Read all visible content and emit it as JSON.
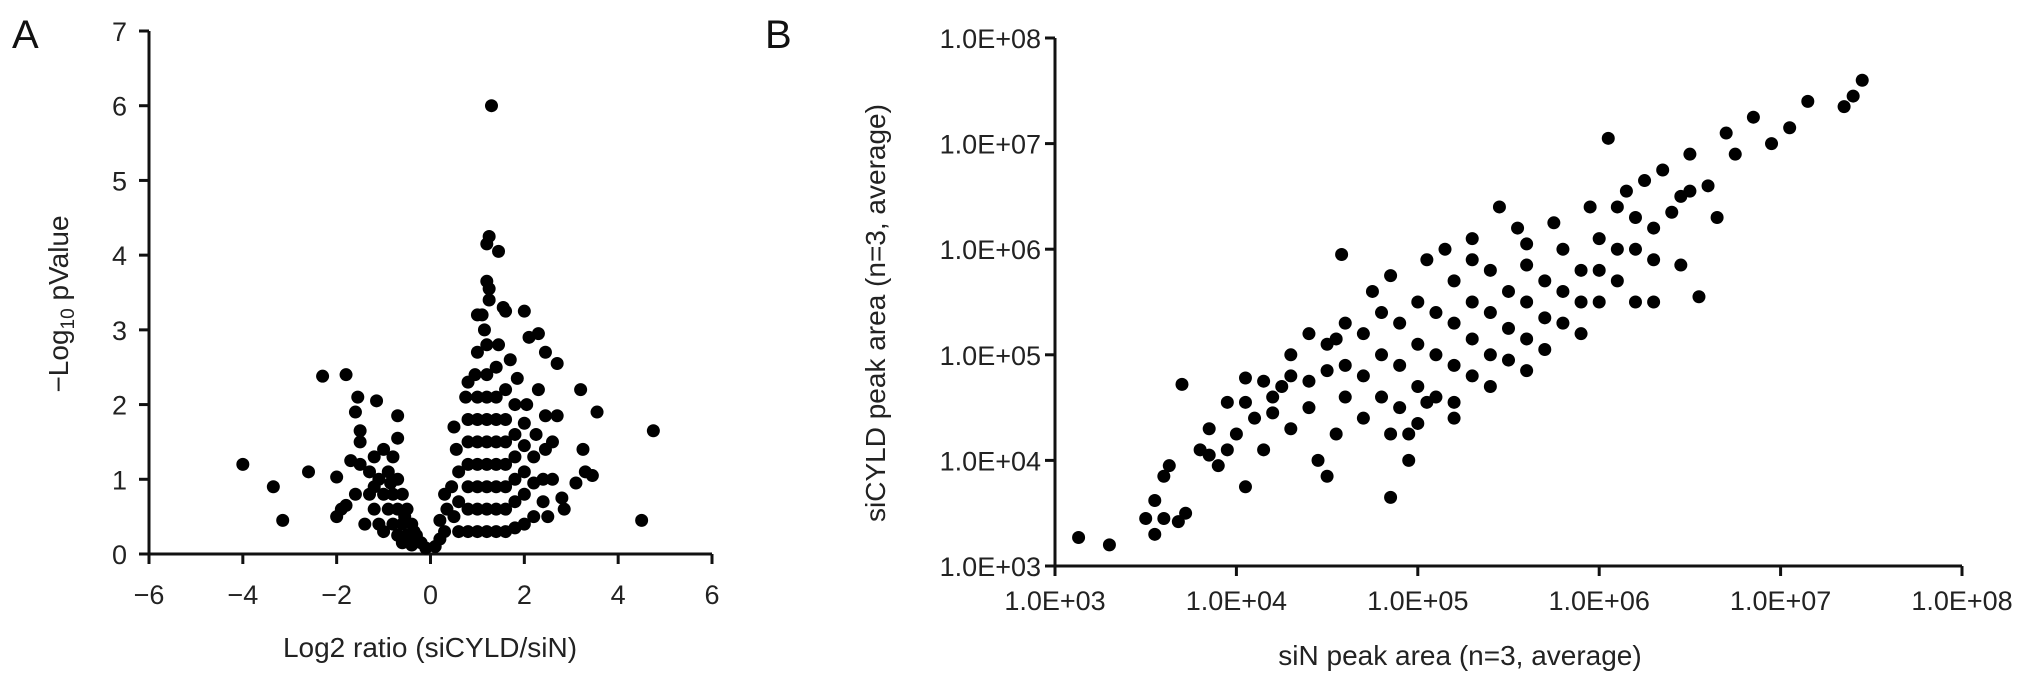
{
  "chart_data": [
    {
      "type": "scatter",
      "panel_label": "A",
      "title": "",
      "xlabel": "Log2 ratio (siCYLD/siN)",
      "ylabel": {
        "prefix": "−Log",
        "sub": "10",
        "suffix": " pValue"
      },
      "xlim": [
        -6,
        6
      ],
      "ylim": [
        0,
        7
      ],
      "xticks": [
        "−6",
        "−4",
        "−2",
        "0",
        "2",
        "4",
        "6"
      ],
      "xtick_values": [
        -6,
        -4,
        -2,
        0,
        2,
        4,
        6
      ],
      "yticks": [
        "0",
        "1",
        "2",
        "3",
        "4",
        "5",
        "6",
        "7"
      ],
      "ytick_values": [
        0,
        1,
        2,
        3,
        4,
        5,
        6,
        7
      ],
      "grid": false,
      "marker_color": "#000000",
      "points": [
        [
          1.3,
          6.0
        ],
        [
          1.25,
          4.25
        ],
        [
          1.2,
          4.15
        ],
        [
          1.45,
          4.05
        ],
        [
          1.2,
          3.65
        ],
        [
          1.25,
          3.55
        ],
        [
          1.25,
          3.4
        ],
        [
          1.55,
          3.3
        ],
        [
          1.6,
          3.25
        ],
        [
          2.0,
          3.25
        ],
        [
          1.0,
          3.2
        ],
        [
          1.1,
          3.2
        ],
        [
          2.3,
          2.95
        ],
        [
          2.1,
          2.9
        ],
        [
          2.45,
          2.7
        ],
        [
          2.7,
          2.55
        ],
        [
          3.2,
          2.2
        ],
        [
          3.55,
          1.9
        ],
        [
          2.7,
          1.85
        ],
        [
          2.45,
          1.85
        ],
        [
          3.25,
          1.4
        ],
        [
          3.3,
          1.1
        ],
        [
          3.45,
          1.05
        ],
        [
          3.1,
          0.95
        ],
        [
          2.8,
          0.75
        ],
        [
          2.85,
          0.6
        ],
        [
          4.5,
          0.45
        ],
        [
          4.75,
          1.65
        ],
        [
          -4.0,
          1.2
        ],
        [
          -3.35,
          0.9
        ],
        [
          -3.15,
          0.45
        ],
        [
          -2.6,
          1.1
        ],
        [
          -2.3,
          2.38
        ],
        [
          -1.8,
          2.4
        ],
        [
          -1.55,
          2.1
        ],
        [
          -1.15,
          2.05
        ],
        [
          -1.6,
          1.9
        ],
        [
          -0.7,
          1.85
        ],
        [
          -0.7,
          1.55
        ],
        [
          -1.5,
          1.65
        ],
        [
          -1.5,
          1.5
        ],
        [
          -2.0,
          1.03
        ],
        [
          -1.7,
          1.25
        ],
        [
          -1.9,
          0.6
        ],
        [
          -2.0,
          0.5
        ],
        [
          -1.4,
          0.4
        ],
        [
          -1.6,
          0.8
        ],
        [
          -1.8,
          0.65
        ],
        [
          -1.2,
          1.3
        ],
        [
          -1.0,
          1.4
        ],
        [
          -0.8,
          1.3
        ],
        [
          -1.1,
          1.0
        ],
        [
          -0.9,
          1.1
        ],
        [
          -0.7,
          1.0
        ],
        [
          -1.3,
          0.8
        ],
        [
          -1.0,
          0.8
        ],
        [
          -0.8,
          0.8
        ],
        [
          -0.6,
          0.8
        ],
        [
          -1.2,
          0.6
        ],
        [
          -0.9,
          0.6
        ],
        [
          -0.7,
          0.6
        ],
        [
          -0.5,
          0.6
        ],
        [
          -1.1,
          0.4
        ],
        [
          -0.8,
          0.4
        ],
        [
          -0.6,
          0.4
        ],
        [
          -0.4,
          0.4
        ],
        [
          -1.0,
          0.3
        ],
        [
          -0.7,
          0.25
        ],
        [
          -0.5,
          0.25
        ],
        [
          -0.3,
          0.25
        ],
        [
          -0.2,
          0.15
        ],
        [
          -0.1,
          0.08
        ],
        [
          -0.4,
          0.12
        ],
        [
          -0.6,
          0.15
        ],
        [
          -1.3,
          1.1
        ],
        [
          -1.5,
          1.2
        ],
        [
          -1.2,
          0.9
        ],
        [
          -0.85,
          0.95
        ],
        [
          -0.55,
          0.5
        ],
        [
          -0.35,
          0.3
        ],
        [
          0.1,
          0.1
        ],
        [
          0.2,
          0.2
        ],
        [
          0.3,
          0.3
        ],
        [
          0.2,
          0.45
        ],
        [
          0.35,
          0.6
        ],
        [
          0.3,
          0.8
        ],
        [
          0.5,
          0.5
        ],
        [
          0.45,
          0.9
        ],
        [
          0.6,
          0.3
        ],
        [
          0.6,
          0.7
        ],
        [
          0.6,
          1.1
        ],
        [
          0.55,
          1.4
        ],
        [
          0.5,
          1.7
        ],
        [
          0.8,
          0.3
        ],
        [
          0.8,
          0.6
        ],
        [
          0.8,
          0.9
        ],
        [
          0.8,
          1.2
        ],
        [
          0.8,
          1.5
        ],
        [
          0.8,
          1.8
        ],
        [
          0.75,
          2.1
        ],
        [
          0.8,
          2.3
        ],
        [
          1.0,
          0.3
        ],
        [
          1.0,
          0.6
        ],
        [
          1.0,
          0.9
        ],
        [
          1.0,
          1.2
        ],
        [
          1.0,
          1.5
        ],
        [
          1.0,
          1.8
        ],
        [
          1.0,
          2.1
        ],
        [
          0.95,
          2.4
        ],
        [
          1.0,
          2.7
        ],
        [
          1.2,
          0.3
        ],
        [
          1.2,
          0.6
        ],
        [
          1.2,
          0.9
        ],
        [
          1.2,
          1.2
        ],
        [
          1.2,
          1.5
        ],
        [
          1.2,
          1.8
        ],
        [
          1.2,
          2.1
        ],
        [
          1.2,
          2.4
        ],
        [
          1.2,
          2.8
        ],
        [
          1.15,
          3.0
        ],
        [
          1.4,
          0.3
        ],
        [
          1.4,
          0.6
        ],
        [
          1.4,
          0.9
        ],
        [
          1.4,
          1.2
        ],
        [
          1.4,
          1.5
        ],
        [
          1.4,
          1.8
        ],
        [
          1.4,
          2.1
        ],
        [
          1.4,
          2.5
        ],
        [
          1.45,
          2.8
        ],
        [
          1.6,
          0.3
        ],
        [
          1.6,
          0.6
        ],
        [
          1.6,
          0.9
        ],
        [
          1.6,
          1.2
        ],
        [
          1.6,
          1.5
        ],
        [
          1.6,
          1.8
        ],
        [
          1.6,
          2.2
        ],
        [
          1.7,
          2.6
        ],
        [
          1.8,
          0.35
        ],
        [
          1.8,
          0.7
        ],
        [
          1.8,
          1.0
        ],
        [
          1.8,
          1.3
        ],
        [
          1.8,
          1.6
        ],
        [
          1.8,
          2.0
        ],
        [
          1.85,
          2.35
        ],
        [
          2.0,
          0.4
        ],
        [
          2.0,
          0.8
        ],
        [
          2.0,
          1.1
        ],
        [
          2.0,
          1.45
        ],
        [
          2.0,
          1.75
        ],
        [
          2.05,
          2.0
        ],
        [
          2.2,
          0.5
        ],
        [
          2.2,
          0.95
        ],
        [
          2.2,
          1.3
        ],
        [
          2.25,
          1.6
        ],
        [
          2.3,
          2.2
        ],
        [
          2.4,
          0.7
        ],
        [
          2.4,
          1.0
        ],
        [
          2.45,
          1.4
        ],
        [
          2.6,
          1.0
        ],
        [
          2.6,
          1.5
        ],
        [
          2.5,
          0.5
        ]
      ]
    },
    {
      "type": "scatter",
      "panel_label": "B",
      "title": "",
      "xlabel": "siN peak area (n=3, average)",
      "ylabel": "siCYLD peak area (n=3, average)",
      "xscale": "log",
      "yscale": "log",
      "xlim": [
        1000,
        100000000
      ],
      "ylim": [
        1000,
        100000000
      ],
      "xticks": [
        "1.0E+03",
        "1.0E+04",
        "1.0E+05",
        "1.0E+06",
        "1.0E+07",
        "1.0E+08"
      ],
      "yticks": [
        "1.0E+03",
        "1.0E+04",
        "1.0E+05",
        "1.0E+06",
        "1.0E+07",
        "1.0E+08"
      ],
      "tick_log10_values": [
        3,
        4,
        5,
        6,
        7,
        8
      ],
      "grid": false,
      "marker_color": "#000000",
      "points_log10": [
        [
          3.13,
          3.27
        ],
        [
          3.3,
          3.2
        ],
        [
          3.5,
          3.45
        ],
        [
          3.55,
          3.3
        ],
        [
          3.55,
          3.62
        ],
        [
          3.6,
          3.85
        ],
        [
          3.63,
          3.95
        ],
        [
          3.6,
          3.45
        ],
        [
          3.68,
          3.42
        ],
        [
          3.72,
          3.5
        ],
        [
          3.7,
          4.72
        ],
        [
          3.8,
          4.1
        ],
        [
          3.85,
          4.05
        ],
        [
          3.9,
          3.95
        ],
        [
          3.95,
          4.1
        ],
        [
          3.85,
          4.3
        ],
        [
          3.95,
          4.55
        ],
        [
          4.05,
          4.78
        ],
        [
          4.05,
          3.75
        ],
        [
          4.0,
          4.25
        ],
        [
          4.1,
          4.4
        ],
        [
          4.15,
          4.1
        ],
        [
          4.2,
          4.6
        ],
        [
          4.3,
          4.3
        ],
        [
          4.3,
          4.8
        ],
        [
          4.4,
          4.5
        ],
        [
          4.45,
          4.0
        ],
        [
          4.5,
          4.85
        ],
        [
          4.5,
          3.85
        ],
        [
          4.58,
          5.95
        ],
        [
          4.55,
          5.15
        ],
        [
          4.85,
          3.65
        ],
        [
          4.95,
          4.0
        ],
        [
          4.95,
          4.25
        ],
        [
          5.3,
          6.1
        ],
        [
          5.45,
          6.4
        ],
        [
          5.6,
          6.05
        ],
        [
          6.05,
          7.05
        ],
        [
          6.3,
          5.5
        ],
        [
          6.55,
          5.55
        ],
        [
          7.45,
          7.6
        ],
        [
          7.35,
          7.35
        ],
        [
          7.4,
          7.45
        ],
        [
          7.15,
          7.4
        ],
        [
          6.85,
          7.25
        ],
        [
          6.95,
          7.0
        ],
        [
          7.05,
          7.15
        ],
        [
          6.7,
          7.1
        ],
        [
          6.5,
          6.9
        ],
        [
          6.35,
          6.75
        ],
        [
          6.45,
          6.5
        ],
        [
          6.25,
          6.65
        ],
        [
          6.1,
          6.4
        ],
        [
          4.3,
          5.0
        ],
        [
          4.4,
          4.75
        ],
        [
          4.5,
          5.1
        ],
        [
          4.6,
          4.9
        ],
        [
          4.6,
          4.6
        ],
        [
          4.7,
          5.2
        ],
        [
          4.7,
          4.8
        ],
        [
          4.7,
          4.4
        ],
        [
          4.8,
          5.4
        ],
        [
          4.8,
          5.0
        ],
        [
          4.8,
          4.6
        ],
        [
          4.9,
          5.3
        ],
        [
          4.9,
          4.9
        ],
        [
          4.9,
          4.5
        ],
        [
          5.0,
          5.5
        ],
        [
          5.0,
          5.1
        ],
        [
          5.0,
          4.7
        ],
        [
          5.0,
          4.35
        ],
        [
          5.1,
          5.4
        ],
        [
          5.1,
          5.0
        ],
        [
          5.1,
          4.6
        ],
        [
          5.2,
          5.7
        ],
        [
          5.2,
          5.3
        ],
        [
          5.2,
          4.9
        ],
        [
          5.2,
          4.55
        ],
        [
          5.3,
          5.5
        ],
        [
          5.3,
          5.15
        ],
        [
          5.3,
          4.8
        ],
        [
          5.4,
          5.8
        ],
        [
          5.4,
          5.4
        ],
        [
          5.4,
          5.0
        ],
        [
          5.4,
          4.7
        ],
        [
          5.5,
          5.6
        ],
        [
          5.5,
          5.25
        ],
        [
          5.5,
          4.95
        ],
        [
          5.6,
          5.85
        ],
        [
          5.6,
          5.5
        ],
        [
          5.6,
          5.15
        ],
        [
          5.7,
          5.7
        ],
        [
          5.7,
          5.35
        ],
        [
          5.7,
          5.05
        ],
        [
          5.8,
          6.0
        ],
        [
          5.8,
          5.6
        ],
        [
          5.8,
          5.3
        ],
        [
          5.9,
          5.8
        ],
        [
          5.9,
          5.5
        ],
        [
          6.0,
          6.1
        ],
        [
          6.0,
          5.8
        ],
        [
          6.0,
          5.5
        ],
        [
          6.1,
          6.0
        ],
        [
          6.1,
          5.7
        ],
        [
          6.2,
          6.3
        ],
        [
          6.2,
          6.0
        ],
        [
          6.3,
          6.2
        ],
        [
          6.3,
          5.9
        ],
        [
          6.4,
          6.35
        ],
        [
          6.5,
          6.55
        ],
        [
          6.6,
          6.6
        ],
        [
          6.65,
          6.3
        ],
        [
          6.75,
          6.9
        ],
        [
          4.6,
          5.3
        ],
        [
          4.4,
          5.2
        ],
        [
          4.25,
          4.7
        ],
        [
          4.75,
          5.6
        ],
        [
          4.85,
          5.75
        ],
        [
          5.05,
          5.9
        ],
        [
          5.15,
          6.0
        ],
        [
          5.3,
          5.9
        ],
        [
          5.55,
          6.2
        ],
        [
          5.75,
          6.25
        ],
        [
          5.95,
          6.4
        ],
        [
          6.15,
          6.55
        ],
        [
          4.85,
          4.25
        ],
        [
          5.2,
          4.4
        ],
        [
          5.6,
          4.85
        ],
        [
          5.9,
          5.2
        ],
        [
          6.2,
          5.5
        ],
        [
          6.45,
          5.85
        ],
        [
          5.05,
          4.55
        ],
        [
          4.55,
          4.25
        ],
        [
          4.2,
          4.45
        ],
        [
          4.15,
          4.75
        ],
        [
          4.05,
          4.55
        ]
      ]
    }
  ]
}
